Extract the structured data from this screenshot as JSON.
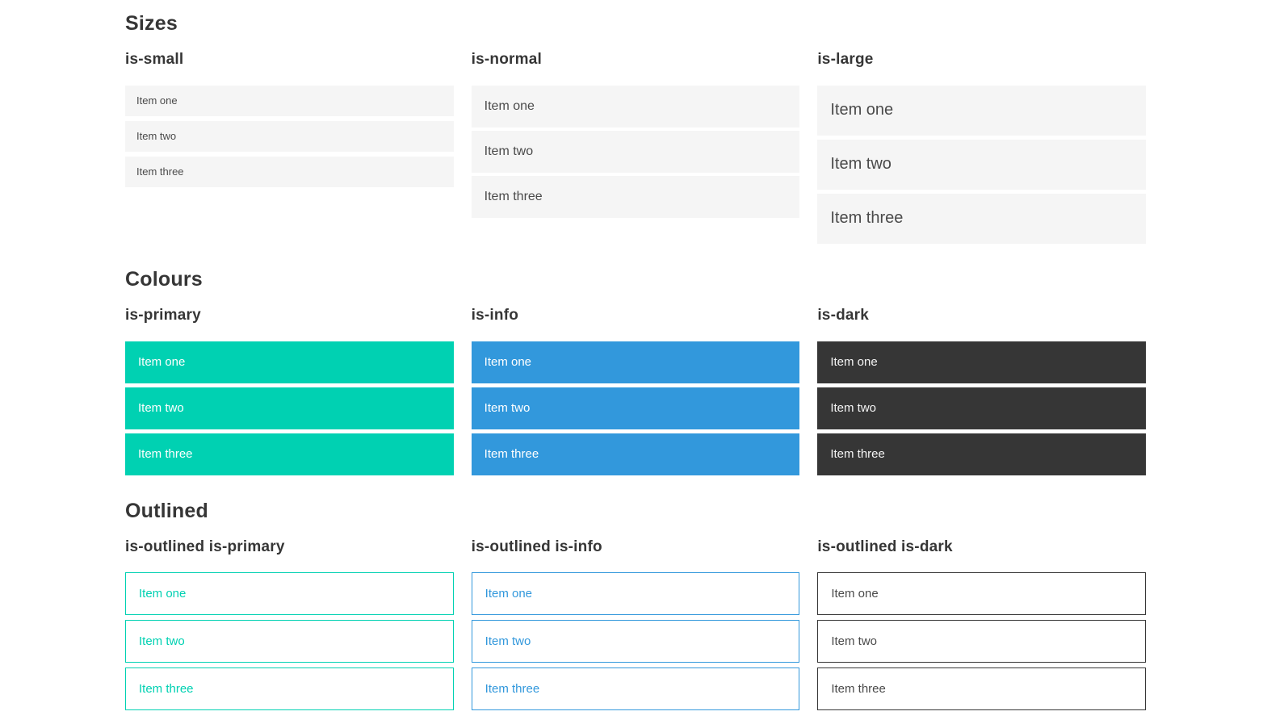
{
  "colors": {
    "primary": "#00d1b2",
    "info": "#3298dc",
    "dark": "#363636",
    "item_background": "#f5f5f5",
    "item_text": "#4a4a4a",
    "heading_text": "#363636",
    "text_on_color": "#ffffff",
    "text_on_dark": "#f5f5f5"
  },
  "sections": [
    {
      "id": "sizes",
      "title": "Sizes",
      "columns": [
        {
          "heading": "is-small",
          "variant": "small",
          "items": [
            "Item one",
            "Item two",
            "Item three"
          ]
        },
        {
          "heading": "is-normal",
          "variant": "normal",
          "items": [
            "Item one",
            "Item two",
            "Item three"
          ]
        },
        {
          "heading": "is-large",
          "variant": "large",
          "items": [
            "Item one",
            "Item two",
            "Item three"
          ]
        }
      ]
    },
    {
      "id": "colours",
      "title": "Colours",
      "columns": [
        {
          "heading": "is-primary",
          "variant": "primary",
          "items": [
            "Item one",
            "Item two",
            "Item three"
          ]
        },
        {
          "heading": "is-info",
          "variant": "info",
          "items": [
            "Item one",
            "Item two",
            "Item three"
          ]
        },
        {
          "heading": "is-dark",
          "variant": "dark",
          "items": [
            "Item one",
            "Item two",
            "Item three"
          ]
        }
      ]
    },
    {
      "id": "outlined",
      "title": "Outlined",
      "columns": [
        {
          "heading": "is-outlined is-primary",
          "variant": "outlined-primary",
          "items": [
            "Item one",
            "Item two",
            "Item three"
          ]
        },
        {
          "heading": "is-outlined is-info",
          "variant": "outlined-info",
          "items": [
            "Item one",
            "Item two",
            "Item three"
          ]
        },
        {
          "heading": "is-outlined is-dark",
          "variant": "outlined-dark",
          "items": [
            "Item one",
            "Item two",
            "Item three"
          ]
        }
      ]
    }
  ]
}
